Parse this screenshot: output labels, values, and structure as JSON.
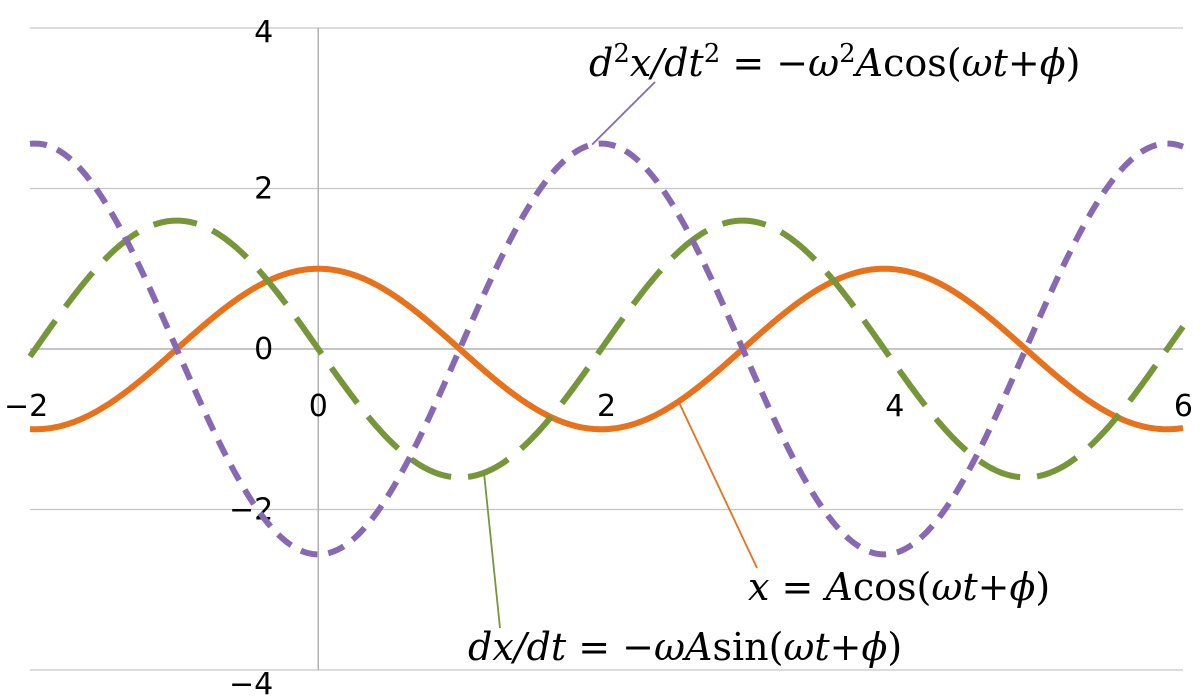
{
  "chart_data": {
    "type": "line",
    "title": "",
    "xlabel": "",
    "ylabel": "",
    "xlim": [
      -2,
      6
    ],
    "ylim": [
      -4,
      4
    ],
    "x_ticks": [
      "−2",
      "0",
      "2",
      "4",
      "6"
    ],
    "y_ticks": [
      "4",
      "2",
      "0",
      "−2",
      "−4"
    ],
    "grid": "horizontal",
    "omega": 1.6,
    "amplitude": 1,
    "phase": 0,
    "series": [
      {
        "key": "x",
        "formula": "x = Acos(ωt+ϕ)",
        "color": "#e8711c",
        "style": "solid",
        "x": [
          -2.0,
          -1.0,
          -0.98,
          0.0,
          0.98,
          1.96,
          2.94,
          3.93,
          4.91,
          5.89,
          6.0
        ],
        "y": [
          -1.0,
          -0.03,
          0.0,
          1.0,
          0.0,
          -1.0,
          0.0,
          1.0,
          0.0,
          -1.0,
          -0.99
        ]
      },
      {
        "key": "v",
        "formula": "dx/dt = −ωAsin(ωt+ϕ)",
        "color": "#76963a",
        "style": "long-dash",
        "x": [
          -2.0,
          -0.98,
          0.0,
          0.98,
          1.96,
          2.94,
          3.93,
          4.91,
          6.0
        ],
        "y": [
          -0.09,
          1.6,
          0.0,
          -1.6,
          0.0,
          1.6,
          0.0,
          -1.6,
          0.28
        ]
      },
      {
        "key": "a",
        "formula": "d2x/dt2 = −ω2Acos(ωt+ϕ)",
        "color": "#8669b0",
        "style": "short-dash",
        "x": [
          -2.0,
          -0.98,
          0.0,
          0.98,
          1.96,
          2.94,
          3.93,
          4.91,
          6.0
        ],
        "y": [
          2.56,
          0.0,
          -2.56,
          0.0,
          2.56,
          0.0,
          -2.56,
          0.0,
          2.54
        ]
      }
    ],
    "annotations": [
      {
        "series": "a",
        "parts": [
          "d",
          "2",
          "x/",
          "dt",
          "2",
          " = −",
          "ω",
          "2",
          "A",
          "cos(",
          "ωt+ϕ",
          ")"
        ]
      },
      {
        "series": "x",
        "parts": [
          "x",
          " = ",
          "A",
          "cos(",
          "ωt+ϕ",
          ")"
        ]
      },
      {
        "series": "v",
        "parts": [
          "dx/",
          "dt",
          " = −",
          "ω",
          "A",
          "sin(",
          "ωt+ϕ",
          ")"
        ]
      }
    ]
  }
}
